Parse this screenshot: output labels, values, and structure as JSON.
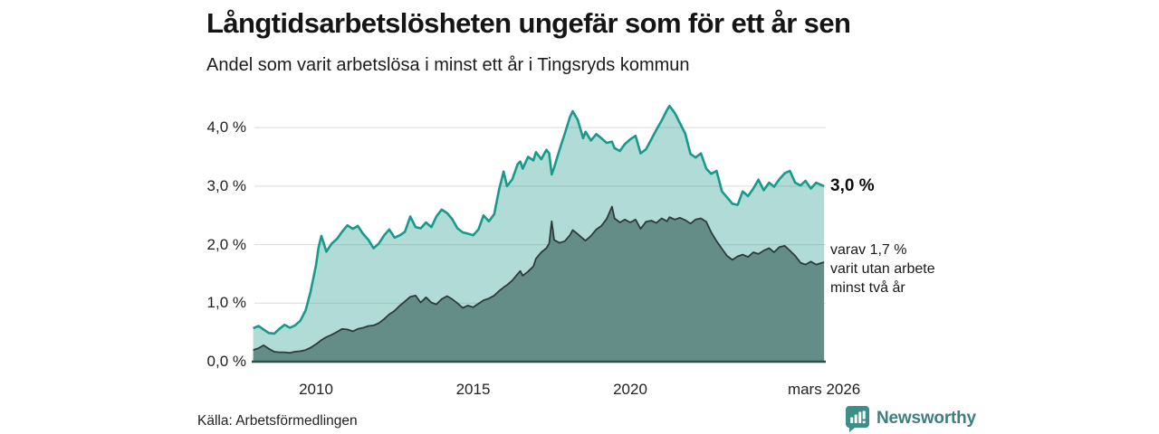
{
  "header": {
    "title": "Långtidsarbetslösheten ungefär som för ett år sen",
    "subtitle": "Andel som varit arbetslösa i minst ett år i Tingsryds kommun"
  },
  "y_axis": {
    "ticks": [
      {
        "label": "0,0 %",
        "value": 0
      },
      {
        "label": "1,0 %",
        "value": 1
      },
      {
        "label": "2,0 %",
        "value": 2
      },
      {
        "label": "3,0 %",
        "value": 3
      },
      {
        "label": "4,0 %",
        "value": 4
      }
    ]
  },
  "x_axis": {
    "ticks": [
      {
        "label": "2010",
        "t": 2010
      },
      {
        "label": "2015",
        "t": 2015
      },
      {
        "label": "2020",
        "t": 2020
      },
      {
        "label": "mars 2026",
        "t": 2026.17
      }
    ]
  },
  "annotations": {
    "total_label": "3,0 %",
    "two_year_lines": [
      "varav 1,7 %",
      "varit utan arbete",
      "minst två år"
    ]
  },
  "footer": {
    "source": "Källa: Arbetsförmedlingen",
    "brand": "Newsworthy"
  },
  "colors": {
    "line_total": "#18998c",
    "fill_total": "rgba(24,150,138,0.34)",
    "fill_two_year": "#658d87",
    "line_two_year": "#2d3b39",
    "axis": "#2f4f4c",
    "grid": "#e0e0e0",
    "brand_icon": "#3e8e88"
  },
  "chart_data": {
    "type": "area",
    "title": "Långtidsarbetslösheten ungefär som för ett år sen",
    "subtitle": "Andel som varit arbetslösa i minst ett år i Tingsryds kommun",
    "y_unit": "%",
    "ylim": [
      0,
      4.5
    ],
    "xlim": [
      2008.04,
      2026.17
    ],
    "grid": true,
    "end_values": {
      "total": "3,0 %",
      "two_year": "1,7 %"
    },
    "x": [
      2008.0,
      2008.17,
      2008.33,
      2008.5,
      2008.67,
      2008.83,
      2009.0,
      2009.17,
      2009.33,
      2009.5,
      2009.67,
      2009.83,
      2010.0,
      2010.08,
      2010.17,
      2010.33,
      2010.5,
      2010.67,
      2010.83,
      2011.0,
      2011.17,
      2011.33,
      2011.5,
      2011.67,
      2011.83,
      2012.0,
      2012.17,
      2012.33,
      2012.5,
      2012.67,
      2012.83,
      2013.0,
      2013.17,
      2013.33,
      2013.5,
      2013.67,
      2013.83,
      2014.0,
      2014.17,
      2014.33,
      2014.5,
      2014.67,
      2014.83,
      2015.0,
      2015.17,
      2015.33,
      2015.5,
      2015.67,
      2015.83,
      2015.97,
      2016.08,
      2016.25,
      2016.42,
      2016.5,
      2016.58,
      2016.75,
      2016.92,
      2017.0,
      2017.17,
      2017.33,
      2017.42,
      2017.5,
      2017.58,
      2017.75,
      2017.92,
      2018.08,
      2018.17,
      2018.33,
      2018.5,
      2018.58,
      2018.75,
      2018.92,
      2019.08,
      2019.25,
      2019.42,
      2019.5,
      2019.67,
      2019.83,
      2020.0,
      2020.17,
      2020.33,
      2020.5,
      2020.67,
      2020.83,
      2021.0,
      2021.17,
      2021.25,
      2021.42,
      2021.58,
      2021.75,
      2021.92,
      2022.08,
      2022.25,
      2022.42,
      2022.58,
      2022.75,
      2022.92,
      2023.08,
      2023.25,
      2023.42,
      2023.58,
      2023.75,
      2023.92,
      2024.08,
      2024.25,
      2024.42,
      2024.58,
      2024.75,
      2024.92,
      2025.08,
      2025.25,
      2025.42,
      2025.58,
      2025.75,
      2025.92,
      2026.17
    ],
    "series": [
      {
        "name": "Andel arbetslösa minst ett år",
        "values": [
          0.57,
          0.61,
          0.55,
          0.49,
          0.48,
          0.56,
          0.63,
          0.58,
          0.62,
          0.7,
          0.88,
          1.2,
          1.65,
          1.95,
          2.15,
          1.88,
          2.02,
          2.1,
          2.22,
          2.33,
          2.27,
          2.32,
          2.18,
          2.08,
          1.94,
          2.02,
          2.16,
          2.26,
          2.12,
          2.16,
          2.22,
          2.48,
          2.3,
          2.28,
          2.38,
          2.3,
          2.48,
          2.6,
          2.54,
          2.44,
          2.28,
          2.21,
          2.19,
          2.16,
          2.26,
          2.5,
          2.4,
          2.52,
          2.95,
          3.25,
          3.0,
          3.12,
          3.38,
          3.42,
          3.3,
          3.5,
          3.44,
          3.58,
          3.46,
          3.62,
          3.56,
          3.2,
          3.32,
          3.62,
          3.9,
          4.18,
          4.28,
          4.13,
          3.82,
          3.93,
          3.78,
          3.89,
          3.82,
          3.74,
          3.76,
          3.65,
          3.6,
          3.72,
          3.8,
          3.86,
          3.56,
          3.63,
          3.8,
          3.96,
          4.12,
          4.3,
          4.37,
          4.25,
          4.08,
          3.9,
          3.55,
          3.49,
          3.56,
          3.3,
          3.21,
          3.26,
          2.91,
          2.81,
          2.7,
          2.68,
          2.91,
          2.83,
          2.96,
          3.11,
          2.93,
          3.06,
          2.99,
          3.12,
          3.22,
          3.26,
          3.06,
          3.01,
          3.09,
          2.96,
          3.06,
          3.0
        ]
      },
      {
        "name": "varav utan arbete minst två år",
        "values": [
          0.2,
          0.23,
          0.28,
          0.22,
          0.17,
          0.16,
          0.16,
          0.15,
          0.17,
          0.18,
          0.2,
          0.24,
          0.3,
          0.33,
          0.37,
          0.42,
          0.46,
          0.51,
          0.56,
          0.55,
          0.52,
          0.56,
          0.58,
          0.61,
          0.62,
          0.66,
          0.73,
          0.81,
          0.87,
          0.96,
          1.03,
          1.11,
          1.13,
          1.01,
          1.1,
          1.01,
          0.98,
          1.07,
          1.12,
          1.07,
          1.0,
          0.92,
          0.96,
          0.93,
          0.99,
          1.05,
          1.08,
          1.13,
          1.21,
          1.27,
          1.31,
          1.39,
          1.5,
          1.55,
          1.47,
          1.54,
          1.63,
          1.76,
          1.87,
          1.94,
          2.02,
          2.4,
          2.08,
          2.03,
          2.06,
          2.16,
          2.25,
          2.18,
          2.1,
          2.07,
          2.15,
          2.26,
          2.32,
          2.44,
          2.65,
          2.45,
          2.38,
          2.43,
          2.38,
          2.43,
          2.27,
          2.39,
          2.41,
          2.37,
          2.45,
          2.4,
          2.47,
          2.43,
          2.46,
          2.42,
          2.36,
          2.43,
          2.45,
          2.39,
          2.21,
          2.06,
          1.93,
          1.81,
          1.74,
          1.8,
          1.83,
          1.79,
          1.87,
          1.84,
          1.9,
          1.94,
          1.87,
          1.96,
          1.98,
          1.9,
          1.81,
          1.69,
          1.66,
          1.71,
          1.66,
          1.7
        ]
      }
    ]
  }
}
